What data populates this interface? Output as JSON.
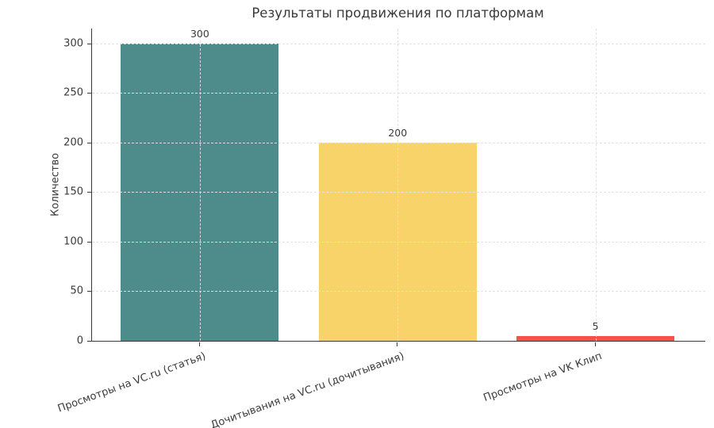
{
  "chart_data": {
    "type": "bar",
    "title": "Результаты продвижения по платформам",
    "xlabel": "",
    "ylabel": "Количество",
    "categories": [
      "Просмотры на VC.ru (статья)",
      "Дочитывания на VC.ru (дочитывания)",
      "Просмотры на VK Клип"
    ],
    "values": [
      300,
      200,
      5
    ],
    "value_labels": [
      "300",
      "200",
      "5"
    ],
    "bar_colors": [
      "#4e8b8b",
      "#f8d369",
      "#f5514d"
    ],
    "yticks": [
      0,
      50,
      100,
      150,
      200,
      250,
      300
    ],
    "ylim": [
      0,
      315
    ],
    "grid": "dashed, horizontal and vertical, drawn over bars",
    "legend": "none",
    "text_color": "#3a3a3a",
    "background_color": "#ffffff",
    "x_label_rotation_deg": -20
  }
}
